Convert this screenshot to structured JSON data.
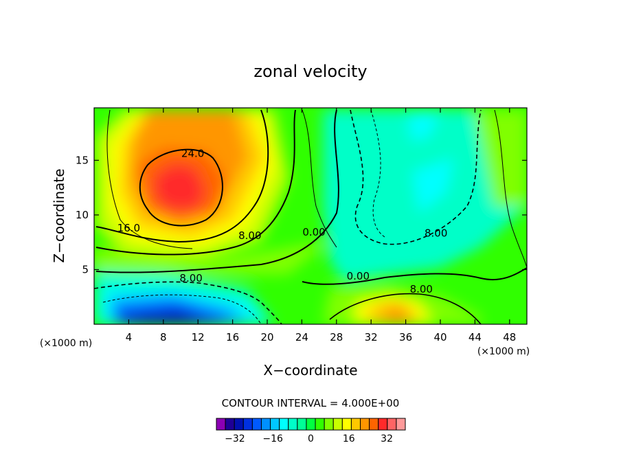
{
  "chart_data": {
    "type": "heatmap",
    "title": "zonal velocity",
    "xlabel": "X−coordinate",
    "ylabel": "Z−coordinate",
    "x_unit_left": "(×1000 m)",
    "x_unit_right": "(×1000 m)",
    "xlim": [
      0,
      50
    ],
    "ylim": [
      0,
      19.8
    ],
    "x_ticks": [
      4,
      8,
      12,
      16,
      20,
      24,
      28,
      32,
      36,
      40,
      44,
      48
    ],
    "y_ticks": [
      5,
      10,
      15
    ],
    "contour_interval_text": "CONTOUR INTERVAL = 4.000E+00",
    "contour_interval": 4,
    "colorbar": {
      "levels": [
        -36,
        -32,
        -28,
        -24,
        -20,
        -16,
        -12,
        -8,
        -4,
        0,
        4,
        8,
        12,
        16,
        20,
        24,
        28,
        32,
        36
      ],
      "colors": [
        "#8c00b4",
        "#1e0096",
        "#0010b0",
        "#0030e0",
        "#005aff",
        "#0090ff",
        "#00c8ff",
        "#00ffff",
        "#00ffc8",
        "#00ff96",
        "#00ff40",
        "#30ff00",
        "#80ff00",
        "#c8ff00",
        "#ffff00",
        "#ffc800",
        "#ff9600",
        "#ff6400",
        "#ff2a2a",
        "#ff6464",
        "#ff9a9a"
      ],
      "tick_labels": [
        {
          "value": -32,
          "label": "−32"
        },
        {
          "value": -16,
          "label": "−16"
        },
        {
          "value": 0,
          "label": "0"
        },
        {
          "value": 16,
          "label": "16"
        },
        {
          "value": 32,
          "label": "32"
        }
      ]
    },
    "contour_labels": [
      {
        "text": "24.0",
        "x": 11.4,
        "y": 15.3
      },
      {
        "text": "16.0",
        "x": 4.0,
        "y": 8.5
      },
      {
        "text": "8.00",
        "x": 18.0,
        "y": 7.8
      },
      {
        "text": "0.00",
        "x": 25.4,
        "y": 8.1
      },
      {
        "text": "8.00",
        "x": 39.5,
        "y": 8.0
      },
      {
        "text": "8.00",
        "x": 11.2,
        "y": 3.9
      },
      {
        "text": "0.00",
        "x": 30.5,
        "y": 4.1
      },
      {
        "text": "8.00",
        "x": 37.8,
        "y": 2.9
      }
    ],
    "features": [
      {
        "kind": "max",
        "x": 10,
        "y": 12.5,
        "value": 32
      },
      {
        "kind": "min",
        "x": 10,
        "y": 0.5,
        "value": -32
      },
      {
        "kind": "max",
        "x": 35,
        "y": 1.2,
        "value": 24
      },
      {
        "kind": "min",
        "x": 38,
        "y": 13,
        "value": -12
      }
    ]
  }
}
